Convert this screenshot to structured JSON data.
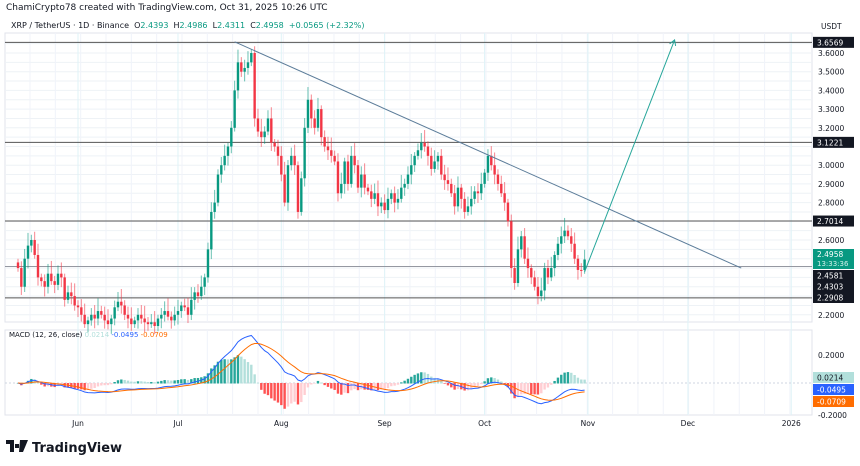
{
  "credit": "ChamiCrypto78 created with TradingView.com, Oct 31, 2025 10:26 UTC",
  "legend": {
    "symbol": "XRP / TetherUS · 1D · Binance",
    "o_label": "O",
    "o": "2.4393",
    "h_label": "H",
    "h": "2.4986",
    "l_label": "L",
    "l": "2.4311",
    "c_label": "C",
    "c": "2.4958",
    "change": "+0.0565 (+2.32%)"
  },
  "currency": "USDT",
  "macd_legend": {
    "name": "MACD (12, 26, close)",
    "hist": "0.0214",
    "macd": "-0.0495",
    "signal": "-0.0709"
  },
  "brand": "TradingView",
  "colors": {
    "up": "#089981",
    "down": "#f23645",
    "macd": "#2962ff",
    "signal": "#ff6d00",
    "hist_up": "#26a69a",
    "hist_down": "#ff5252",
    "level_label_bg": "#131722"
  },
  "chart_data": [
    {
      "type": "candlestick",
      "symbol": "XRP / TetherUS",
      "interval": "1D",
      "start_date": "2025-05-14",
      "end_date": "2025-10-31",
      "closes": [
        2.45,
        2.35,
        2.5,
        2.57,
        2.6,
        2.52,
        2.4,
        2.38,
        2.35,
        2.42,
        2.38,
        2.36,
        2.42,
        2.4,
        2.28,
        2.32,
        2.3,
        2.25,
        2.24,
        2.2,
        2.15,
        2.17,
        2.2,
        2.18,
        2.22,
        2.2,
        2.17,
        2.15,
        2.18,
        2.24,
        2.27,
        2.25,
        2.2,
        2.18,
        2.15,
        2.17,
        2.2,
        2.18,
        2.16,
        2.15,
        2.16,
        2.14,
        2.18,
        2.2,
        2.22,
        2.19,
        2.17,
        2.2,
        2.22,
        2.25,
        2.24,
        2.2,
        2.28,
        2.32,
        2.3,
        2.35,
        2.4,
        2.55,
        2.75,
        2.8,
        2.95,
        3.0,
        3.05,
        3.1,
        3.2,
        3.4,
        3.55,
        3.5,
        3.52,
        3.55,
        3.6,
        3.25,
        3.18,
        3.15,
        3.18,
        3.25,
        3.12,
        3.1,
        3.05,
        2.95,
        2.8,
        3.0,
        3.05,
        3.0,
        2.75,
        2.93,
        3.2,
        3.35,
        3.25,
        3.2,
        3.3,
        3.15,
        3.1,
        3.08,
        3.05,
        3.02,
        2.85,
        2.9,
        3.02,
        2.9,
        3.05,
        3.0,
        2.88,
        2.95,
        2.88,
        2.86,
        2.82,
        2.85,
        2.78,
        2.8,
        2.76,
        2.82,
        2.85,
        2.8,
        2.82,
        2.88,
        2.9,
        2.95,
        3.0,
        3.05,
        3.08,
        3.12,
        3.1,
        3.05,
        2.98,
        3.02,
        3.05,
        2.95,
        2.92,
        2.9,
        2.85,
        2.78,
        2.88,
        2.82,
        2.75,
        2.78,
        2.82,
        2.86,
        2.85,
        2.9,
        2.96,
        3.05,
        3.0,
        2.95,
        2.9,
        2.85,
        2.8,
        2.7,
        2.45,
        2.37,
        2.55,
        2.62,
        2.5,
        2.45,
        2.4,
        2.35,
        2.3,
        2.33,
        2.45,
        2.4,
        2.45,
        2.52,
        2.58,
        2.62,
        2.65,
        2.62,
        2.58,
        2.5,
        2.44,
        2.4393,
        2.4958
      ],
      "y_ticks": [
        "3.6000",
        "3.5000",
        "3.4000",
        "3.3000",
        "3.2000",
        "3.0000",
        "2.9000",
        "2.8000",
        "2.6000",
        "2.2000"
      ],
      "ylim": [
        2.15,
        3.7
      ],
      "x_ticks": [
        "Jun",
        "Jul",
        "Aug",
        "Sep",
        "Oct",
        "Nov",
        "Dec",
        "2026"
      ],
      "horizontal_levels": [
        {
          "value": "3.6569"
        },
        {
          "value": "3.1221"
        },
        {
          "value": "2.7014"
        },
        {
          "value": "2.4581"
        },
        {
          "value": "2.4303"
        },
        {
          "value": "2.2908"
        }
      ],
      "last_price": {
        "value": "2.4958",
        "countdown": "13:33:36"
      },
      "trendline": {
        "from": {
          "date": "2025-07-18",
          "price": 3.66
        },
        "to": {
          "date": "2025-12-17",
          "price": 2.45
        }
      },
      "projection_arrow": {
        "from": {
          "date": "2025-10-31",
          "price": 2.43
        },
        "to": {
          "date": "2025-11-27",
          "price": 3.67
        }
      },
      "grid": true
    },
    {
      "type": "macd",
      "params": "12, 26, close",
      "y_ticks": [
        "0.2000",
        "-0.2000"
      ],
      "ylim": [
        -0.22,
        0.25
      ],
      "last_values": {
        "histogram": "0.0214",
        "macd": "-0.0495",
        "signal": "-0.0709"
      }
    }
  ]
}
